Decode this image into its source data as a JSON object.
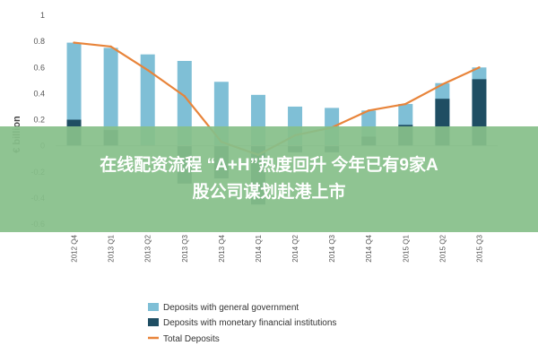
{
  "chart_data": {
    "type": "bar",
    "categories": [
      "2012 Q4",
      "2013 Q1",
      "2013 Q2",
      "2013 Q3",
      "2013 Q4",
      "2014 Q1",
      "2014 Q2",
      "2014 Q3",
      "2014 Q4",
      "2015 Q1",
      "2015 Q2",
      "2015 Q3"
    ],
    "series": [
      {
        "name": "Deposits with general government",
        "type": "bar",
        "color": "#7fbfd6",
        "values": [
          0.79,
          0.75,
          0.7,
          0.65,
          0.49,
          0.39,
          0.3,
          0.29,
          0.27,
          0.32,
          0.48,
          0.6
        ]
      },
      {
        "name": "Deposits with monetary financial institutions",
        "type": "bar",
        "color": "#1f4e63",
        "values": [
          0.2,
          0.12,
          0.0,
          -0.29,
          -0.25,
          -0.45,
          -0.05,
          -0.05,
          0.07,
          0.16,
          0.36,
          0.51
        ]
      },
      {
        "name": "Total Deposits",
        "type": "line",
        "color": "#e8843a",
        "values": [
          0.79,
          0.76,
          0.58,
          0.38,
          0.03,
          -0.07,
          0.08,
          0.14,
          0.27,
          0.32,
          0.47,
          0.6
        ]
      }
    ],
    "ylabel": "€ billion",
    "ylim": [
      -0.6,
      1.0
    ],
    "yticks": [
      "1",
      "0.8",
      "0.6",
      "0.4",
      "0.2",
      "0",
      "-0.2",
      "-0.4",
      "-0.6"
    ],
    "grid": false,
    "legend": "bottom"
  },
  "banner": {
    "line1": "在线配资流程 “A+H”热度回升 今年已有9家A",
    "line2": "股公司谋划赴港上市",
    "color": "#86c08a"
  }
}
